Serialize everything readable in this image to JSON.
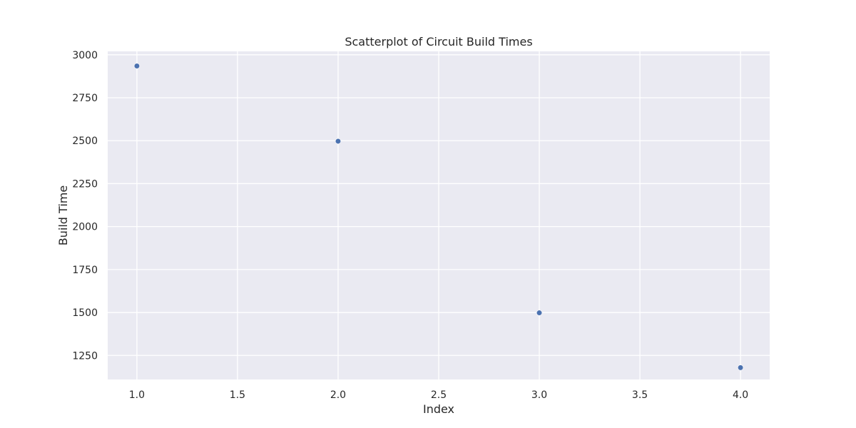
{
  "chart_data": {
    "type": "scatter",
    "title": "Scatterplot of Circuit Build Times",
    "xlabel": "Index",
    "ylabel": "Build Time",
    "x": [
      1,
      2,
      3,
      4
    ],
    "y": [
      2935,
      2497,
      1498,
      1179
    ],
    "xlim": [
      0.855,
      4.145
    ],
    "ylim": [
      1110,
      3020
    ],
    "xticks": [
      1.0,
      1.5,
      2.0,
      2.5,
      3.0,
      3.5,
      4.0
    ],
    "xtick_labels": [
      "1.0",
      "1.5",
      "2.0",
      "2.5",
      "3.0",
      "3.5",
      "4.0"
    ],
    "yticks": [
      1250,
      1500,
      1750,
      2000,
      2250,
      2500,
      2750,
      3000
    ],
    "ytick_labels": [
      "1250",
      "1500",
      "1750",
      "2000",
      "2250",
      "2500",
      "2750",
      "3000"
    ],
    "grid": true,
    "colors": {
      "plot_background": "#eaeaf2",
      "grid": "#ffffff",
      "marker": "#4c72b0",
      "text": "#262626"
    }
  }
}
